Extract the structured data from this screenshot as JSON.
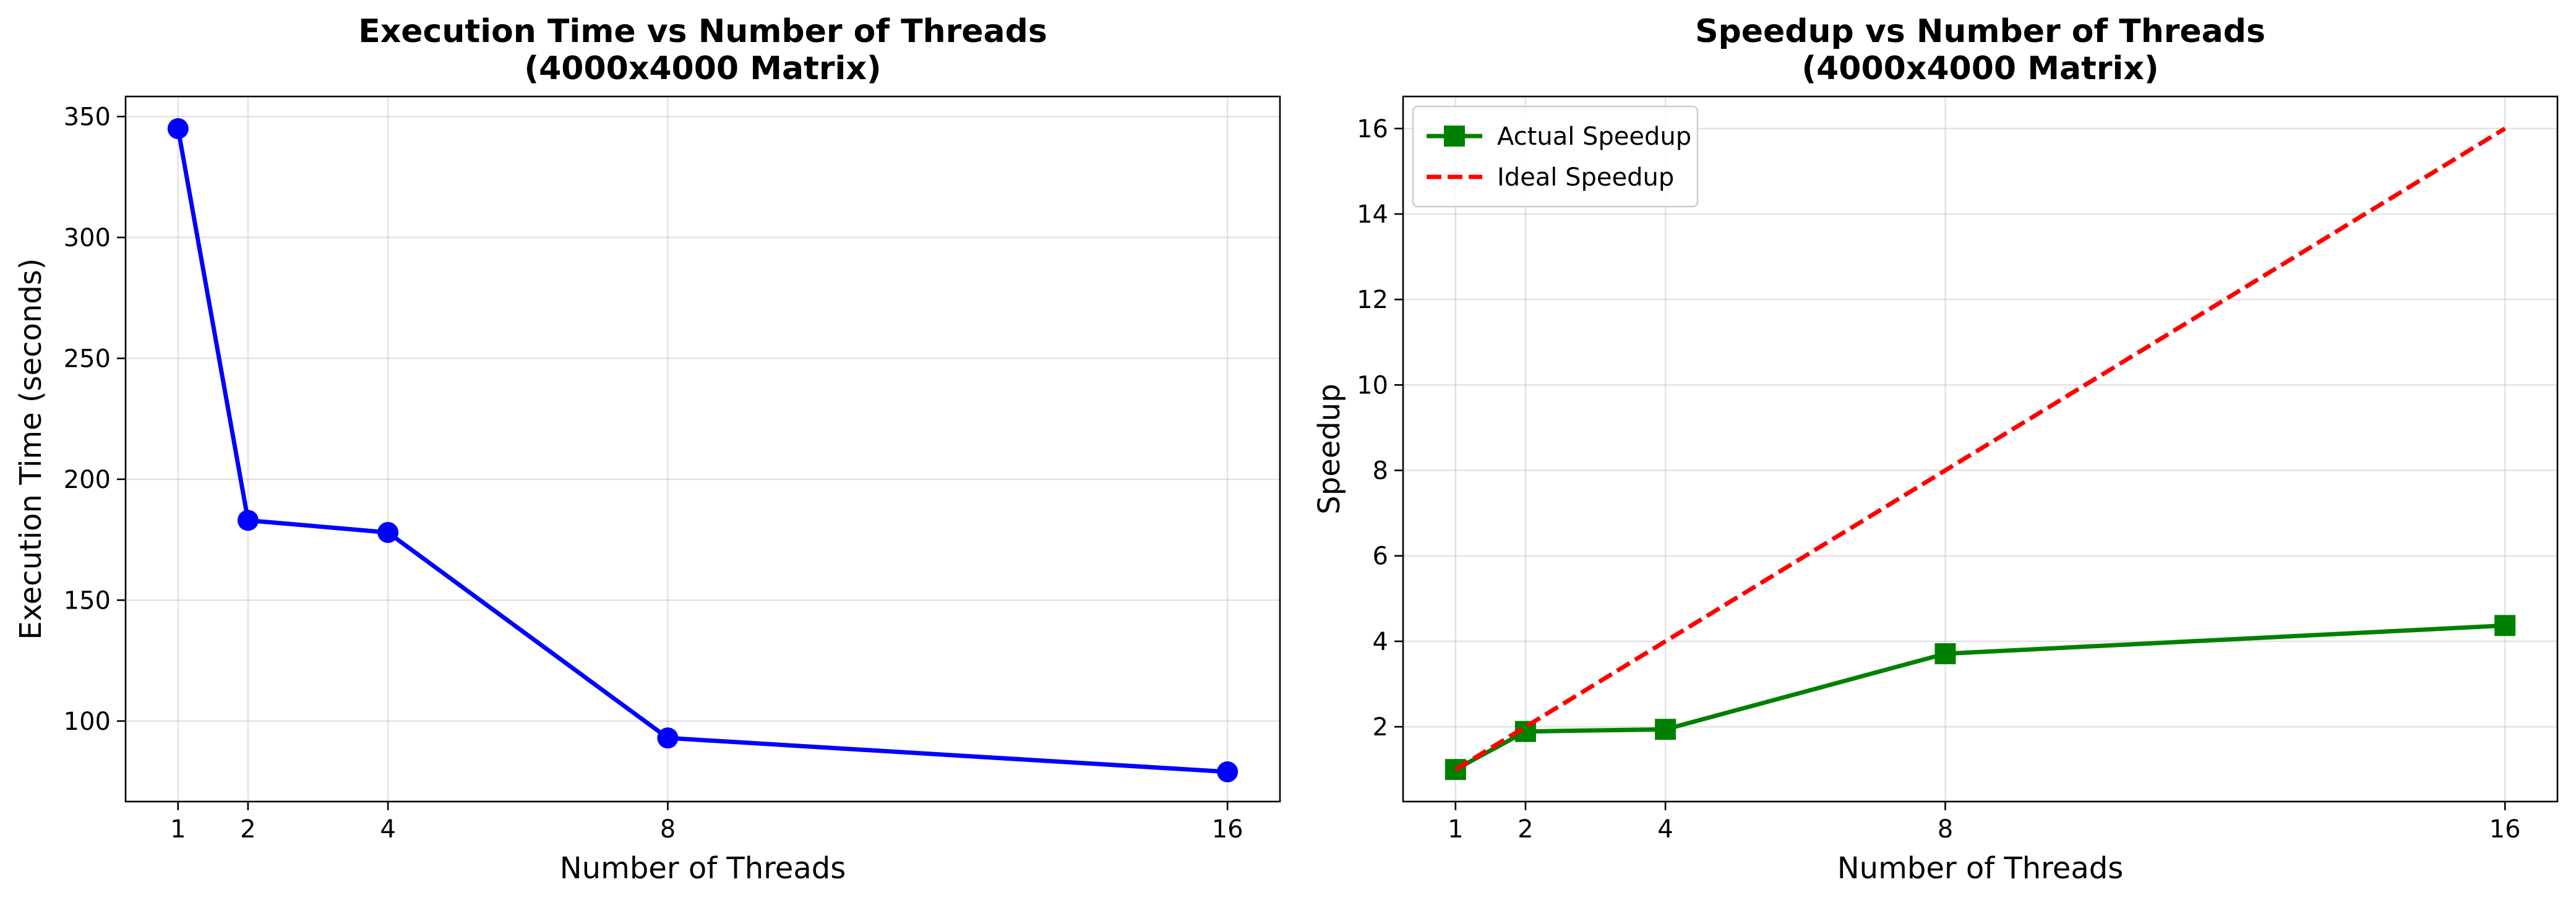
{
  "chart_data": [
    {
      "type": "line",
      "title": "Execution Time vs Number of Threads",
      "subtitle": "(4000x4000 Matrix)",
      "xlabel": "Number of Threads",
      "ylabel": "Execution Time (seconds)",
      "xlim": [
        0.25,
        16.75
      ],
      "ylim": [
        66.7,
        358.3
      ],
      "xticks": [
        1,
        2,
        4,
        8,
        16
      ],
      "yticks": [
        100,
        150,
        200,
        250,
        300,
        350
      ],
      "grid": true,
      "series": [
        {
          "x": [
            1,
            2,
            4,
            8,
            16
          ],
          "y": [
            345,
            183,
            178,
            93,
            79
          ],
          "color": "#0000ff",
          "marker": "circle",
          "linestyle": "solid"
        }
      ]
    },
    {
      "type": "line",
      "title": "Speedup vs Number of Threads",
      "subtitle": "(4000x4000 Matrix)",
      "xlabel": "Number of Threads",
      "ylabel": "Speedup",
      "xlim": [
        0.25,
        16.75
      ],
      "ylim": [
        0.25,
        16.75
      ],
      "xticks": [
        1,
        2,
        4,
        8,
        16
      ],
      "yticks": [
        2,
        4,
        6,
        8,
        10,
        12,
        14,
        16
      ],
      "grid": true,
      "legend_position": "top-left",
      "series": [
        {
          "name": "Actual Speedup",
          "x": [
            1,
            2,
            4,
            8,
            16
          ],
          "y": [
            1.0,
            1.89,
            1.94,
            3.71,
            4.37
          ],
          "color": "#008000",
          "marker": "square",
          "linestyle": "solid"
        },
        {
          "name": "Ideal Speedup",
          "x": [
            1,
            2,
            4,
            8,
            16
          ],
          "y": [
            1,
            2,
            4,
            8,
            16
          ],
          "color": "#ff0000",
          "marker": "none",
          "linestyle": "dashed"
        }
      ]
    }
  ]
}
